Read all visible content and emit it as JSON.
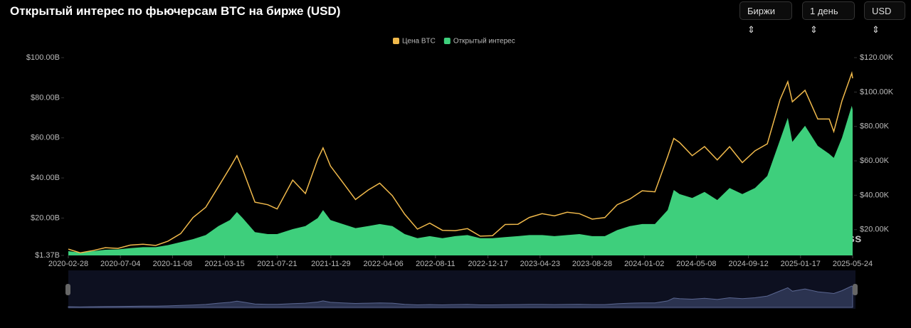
{
  "header": {
    "title": "Открытый интерес по фьючерсам BTC на бирже (USD)",
    "controls": [
      "Биржи",
      "1 день",
      "USD"
    ]
  },
  "chart_data": {
    "type": "line",
    "watermark": "coinglass",
    "x": [
      "2020-02-28",
      "2020-03-28",
      "2020-04-28",
      "2020-05-28",
      "2020-06-28",
      "2020-07-28",
      "2020-08-28",
      "2020-09-28",
      "2020-10-28",
      "2020-11-28",
      "2020-12-28",
      "2021-01-28",
      "2021-02-28",
      "2021-03-28",
      "2021-04-14",
      "2021-04-28",
      "2021-05-28",
      "2021-06-28",
      "2021-07-21",
      "2021-08-28",
      "2021-09-28",
      "2021-10-28",
      "2021-11-10",
      "2021-11-28",
      "2021-12-28",
      "2022-01-28",
      "2022-02-28",
      "2022-03-28",
      "2022-04-28",
      "2022-05-28",
      "2022-06-28",
      "2022-07-28",
      "2022-08-28",
      "2022-09-28",
      "2022-10-28",
      "2022-11-28",
      "2022-12-28",
      "2023-01-28",
      "2023-02-28",
      "2023-03-28",
      "2023-04-28",
      "2023-05-28",
      "2023-06-28",
      "2023-07-28",
      "2023-08-28",
      "2023-09-28",
      "2023-10-28",
      "2023-11-28",
      "2023-12-28",
      "2024-01-28",
      "2024-02-28",
      "2024-03-14",
      "2024-03-28",
      "2024-04-28",
      "2024-05-28",
      "2024-06-28",
      "2024-07-28",
      "2024-08-28",
      "2024-09-28",
      "2024-10-28",
      "2024-11-28",
      "2024-12-17",
      "2024-12-28",
      "2025-01-28",
      "2025-02-28",
      "2025-03-28",
      "2025-04-08",
      "2025-04-28",
      "2025-05-22",
      "2025-05-24"
    ],
    "xlim": [
      "2020-02-28",
      "2025-05-24"
    ],
    "xticks": [
      "2020-02-28",
      "2020-07-04",
      "2020-11-08",
      "2021-03-15",
      "2021-07-21",
      "2021-11-29",
      "2022-04-06",
      "2022-08-11",
      "2022-12-17",
      "2023-04-23",
      "2023-08-28",
      "2024-01-02",
      "2024-05-08",
      "2024-09-12",
      "2025-01-17",
      "2025-05-24"
    ],
    "ylim": [
      1.37,
      100
    ],
    "yticks": [
      {
        "value": 1.37,
        "label": "$1.37B"
      },
      {
        "value": 20,
        "label": "$20.00B"
      },
      {
        "value": 40,
        "label": "$40.00B"
      },
      {
        "value": 60,
        "label": "$60.00B"
      },
      {
        "value": 80,
        "label": "$80.00B"
      },
      {
        "value": 100,
        "label": "$100.00B"
      }
    ],
    "y2lim": [
      5000,
      120000
    ],
    "y2ticks": [
      {
        "value": 20000,
        "label": "$20.00K"
      },
      {
        "value": 40000,
        "label": "$40.00K"
      },
      {
        "value": 60000,
        "label": "$60.00K"
      },
      {
        "value": 80000,
        "label": "$80.00K"
      },
      {
        "value": 100000,
        "label": "$100.00K"
      },
      {
        "value": 120000,
        "label": "$120.00K"
      }
    ],
    "series": [
      {
        "name": "Цена BTC",
        "color": "#f0b94b",
        "axis": "y2",
        "values": [
          8700,
          6500,
          7800,
          9500,
          9100,
          11000,
          11500,
          10800,
          13300,
          17700,
          27000,
          33000,
          45000,
          56000,
          63000,
          55000,
          36000,
          34500,
          32000,
          48800,
          41000,
          61000,
          67500,
          57000,
          47500,
          37500,
          43000,
          47000,
          39700,
          29000,
          20300,
          23800,
          19600,
          19400,
          20600,
          16200,
          16500,
          23000,
          23100,
          27100,
          29300,
          28000,
          30100,
          29300,
          26100,
          27000,
          34500,
          37800,
          42600,
          42000,
          62500,
          73000,
          70700,
          63000,
          68300,
          60500,
          68200,
          59000,
          65800,
          69900,
          95600,
          106000,
          94300,
          101000,
          84300,
          84300,
          77000,
          94900,
          111000,
          108000
        ]
      },
      {
        "name": "Открытый интерес",
        "color": "#3ecf7c",
        "style": "area",
        "values": [
          3.5,
          2.8,
          3.5,
          4.2,
          4.4,
          5,
          5.5,
          5.5,
          6.5,
          8,
          9.5,
          11.5,
          16,
          19,
          23,
          20,
          13,
          12,
          12,
          14.5,
          16,
          20,
          24,
          19,
          17,
          15,
          16,
          17,
          16,
          12,
          10,
          11,
          10,
          11,
          11.5,
          10,
          10,
          10.5,
          11,
          11.5,
          11.5,
          11,
          11.5,
          12,
          11,
          11,
          14,
          16,
          17,
          17,
          24,
          34,
          32,
          30,
          33,
          29,
          35,
          32,
          35,
          41,
          59,
          70,
          58,
          66,
          56,
          52,
          50,
          60,
          76,
          74
        ]
      }
    ]
  }
}
